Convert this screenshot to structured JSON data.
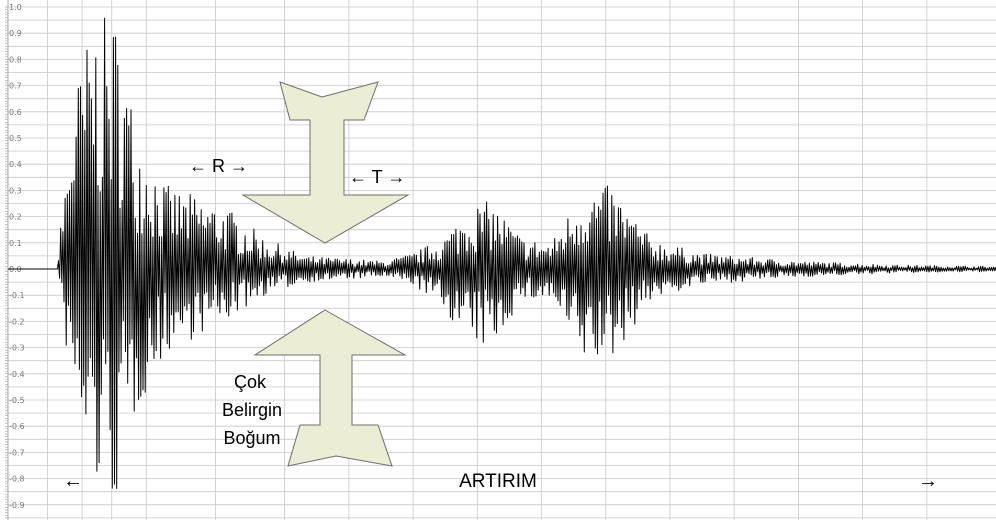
{
  "chart_data": {
    "type": "line",
    "title": "",
    "xlabel": "",
    "ylabel": "",
    "ylim": [
      -0.95,
      1.0
    ],
    "yticks": [
      1.0,
      0.9,
      0.8,
      0.7,
      0.6,
      0.5,
      0.4,
      0.3,
      0.2,
      0.1,
      0.0,
      -0.1,
      -0.2,
      -0.3,
      -0.4,
      -0.5,
      -0.6,
      -0.7,
      -0.8,
      -0.9
    ],
    "ytick_labels": [
      "1.0",
      "0.9",
      "0.8",
      "0.7",
      "0.6",
      "0.5",
      "0.4",
      "0.3",
      "0.2",
      "0.1",
      "0.0",
      "-0.1",
      "-0.2",
      "-0.3",
      "-0.4",
      "-0.5",
      "-0.6",
      "-0.7",
      "-0.8",
      "-0.9"
    ],
    "grid": true,
    "legend": "none",
    "line_color": "#000000",
    "grid_color": "#c8c8c8",
    "series": [
      {
        "envelope_pos": [
          [
            0.0,
            0.0
          ],
          [
            0.05,
            0.0
          ],
          [
            0.055,
            0.25
          ],
          [
            0.065,
            0.65
          ],
          [
            0.085,
            0.95
          ],
          [
            0.11,
            0.97
          ],
          [
            0.13,
            0.55
          ],
          [
            0.16,
            0.32
          ],
          [
            0.22,
            0.24
          ],
          [
            0.26,
            0.12
          ],
          [
            0.3,
            0.05
          ],
          [
            0.38,
            0.03
          ],
          [
            0.41,
            0.06
          ],
          [
            0.44,
            0.12
          ],
          [
            0.47,
            0.25
          ],
          [
            0.49,
            0.26
          ],
          [
            0.52,
            0.12
          ],
          [
            0.55,
            0.1
          ],
          [
            0.58,
            0.3
          ],
          [
            0.61,
            0.32
          ],
          [
            0.65,
            0.12
          ],
          [
            0.7,
            0.06
          ],
          [
            0.8,
            0.03
          ],
          [
            0.9,
            0.015
          ],
          [
            1.0,
            0.01
          ]
        ],
        "envelope_neg": [
          [
            0.0,
            0.0
          ],
          [
            0.05,
            0.0
          ],
          [
            0.055,
            -0.2
          ],
          [
            0.07,
            -0.62
          ],
          [
            0.09,
            -0.85
          ],
          [
            0.11,
            -0.9
          ],
          [
            0.13,
            -0.55
          ],
          [
            0.16,
            -0.32
          ],
          [
            0.22,
            -0.2
          ],
          [
            0.26,
            -0.1
          ],
          [
            0.3,
            -0.05
          ],
          [
            0.38,
            -0.03
          ],
          [
            0.41,
            -0.06
          ],
          [
            0.44,
            -0.15
          ],
          [
            0.47,
            -0.3
          ],
          [
            0.49,
            -0.3
          ],
          [
            0.52,
            -0.12
          ],
          [
            0.55,
            -0.12
          ],
          [
            0.58,
            -0.36
          ],
          [
            0.61,
            -0.36
          ],
          [
            0.65,
            -0.12
          ],
          [
            0.7,
            -0.06
          ],
          [
            0.8,
            -0.03
          ],
          [
            0.9,
            -0.015
          ],
          [
            1.0,
            -0.01
          ]
        ]
      }
    ]
  },
  "annotations": {
    "r_label": "← R →",
    "t_label": "← T →",
    "constriction_line1": "Çok",
    "constriction_line2": "Belirgin",
    "constriction_line3": "Boğum",
    "increase_label": "ARTIRIM",
    "left_arrow": "←",
    "right_arrow": "→"
  },
  "arrow_style": {
    "fill": "#ebedd5",
    "stroke": "#6d6d6d"
  }
}
